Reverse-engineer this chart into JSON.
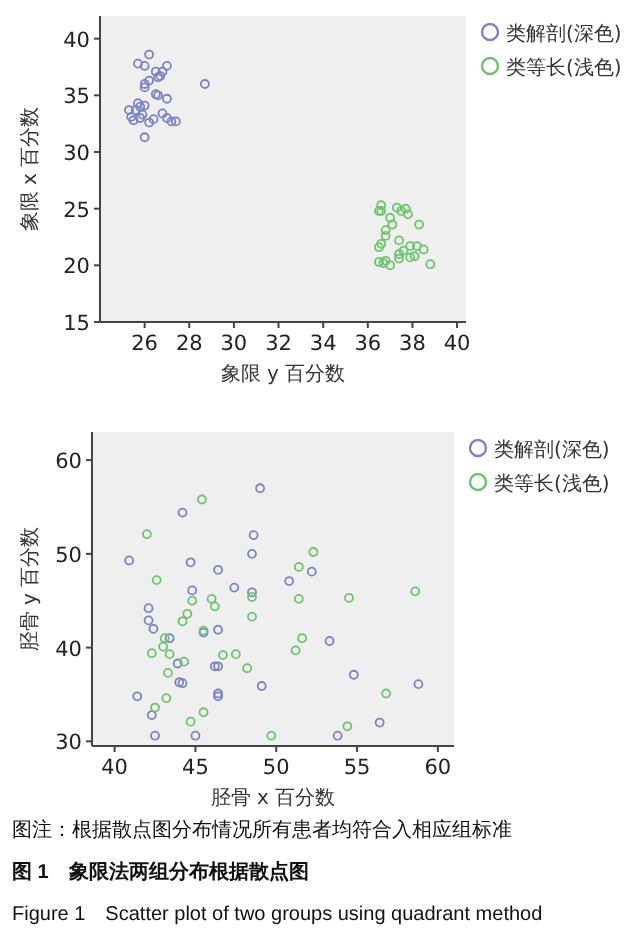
{
  "chart_data": [
    {
      "type": "scatter",
      "xlabel": "象限 y 百分数",
      "ylabel": "象限 x 百分数",
      "xlim": [
        24,
        40.4
      ],
      "ylim": [
        15,
        42
      ],
      "xticks": [
        26,
        28,
        30,
        32,
        34,
        36,
        38,
        40
      ],
      "yticks": [
        15,
        20,
        25,
        30,
        35,
        40
      ],
      "marker": "circle",
      "legend": "top right",
      "grid": false,
      "series": [
        {
          "name": "类解剖(深色)",
          "color": "#7b83c4",
          "x": [
            26.2,
            25.7,
            26,
            27,
            26.5,
            26.8,
            26.7,
            26.6,
            26.2,
            26,
            26,
            28.7,
            26.5,
            26.6,
            27,
            25.7,
            25.8,
            26,
            25.3,
            25.6,
            25.9,
            26.8,
            25.5,
            25.8,
            26.4,
            26.2,
            27,
            27.2,
            27.4,
            26,
            25.4
          ],
          "values": [
            38.6,
            37.8,
            37.6,
            37.6,
            37.1,
            37.1,
            36.7,
            36.6,
            36.3,
            36,
            35.7,
            36,
            35.1,
            35,
            34.7,
            34.3,
            34,
            34.1,
            33.7,
            33.7,
            33.3,
            33.4,
            32.8,
            33,
            32.9,
            32.6,
            33,
            32.7,
            32.7,
            31.3,
            33.1
          ]
        },
        {
          "name": "类等长(浅色)",
          "color": "#6cc46c",
          "x": [
            36.6,
            36.5,
            36.6,
            37.3,
            37.5,
            37.7,
            37.8,
            37,
            37.1,
            38.3,
            36.8,
            36.8,
            37.4,
            36.6,
            36.5,
            37.9,
            38.2,
            38.5,
            37.6,
            37.4,
            37.4,
            37.9,
            38.1,
            36.5,
            36.8,
            37,
            38.8,
            36.7
          ],
          "values": [
            25.3,
            24.8,
            24.8,
            25.1,
            24.8,
            25,
            24.5,
            24.2,
            23.6,
            23.6,
            23.1,
            22.6,
            22.2,
            21.9,
            21.6,
            21.7,
            21.7,
            21.4,
            21.3,
            21,
            20.6,
            20.7,
            20.8,
            20.3,
            20.4,
            20,
            20.1,
            20.2
          ]
        }
      ]
    },
    {
      "type": "scatter",
      "xlabel": "胫骨 x 百分数",
      "ylabel": "胫骨 y 百分数",
      "xlim": [
        38.6,
        61
      ],
      "ylim": [
        29.5,
        63
      ],
      "xticks": [
        40,
        45,
        50,
        55,
        60
      ],
      "yticks": [
        30,
        40,
        50,
        60
      ],
      "marker": "circle",
      "legend": "top right",
      "grid": false,
      "annotations": [
        "图注：根据散点图分布情况所有患者均符合入相应组标准",
        "图 1　象限法两组分布根据散点图",
        "Figure 1　Scatter plot of two groups using quadrant method"
      ],
      "series": [
        {
          "name": "类解剖(深色)",
          "color": "#7b83c4",
          "x": [
            49.0,
            44.2,
            40.9,
            44.7,
            48.6,
            48.5,
            46.4,
            52.2,
            50.8,
            47.4,
            44.8,
            48.5,
            42.1,
            42.1,
            42.4,
            46.4,
            45.5,
            43.4,
            53.3,
            43.9,
            46.2,
            46.4,
            44.0,
            44.2,
            54.8,
            49.1,
            58.8,
            46.4,
            46.4,
            41.4,
            42.3,
            56.4,
            42.5,
            45.0,
            53.8
          ],
          "values": [
            57.0,
            54.4,
            49.3,
            49.1,
            52.0,
            50.0,
            48.3,
            48.1,
            47.1,
            46.4,
            46.1,
            45.9,
            44.2,
            42.9,
            42.0,
            41.9,
            41.6,
            41.0,
            40.7,
            38.3,
            38.0,
            38.0,
            36.3,
            36.2,
            37.1,
            35.9,
            36.1,
            35.1,
            34.8,
            34.8,
            32.8,
            32.0,
            30.6,
            30.6,
            30.6
          ]
        },
        {
          "name": "类等长(浅色)",
          "color": "#6cc46c",
          "x": [
            45.4,
            42.0,
            52.3,
            42.6,
            51.4,
            46.0,
            44.8,
            46.2,
            48.5,
            51.4,
            54.5,
            58.6,
            44.5,
            44.2,
            48.5,
            45.5,
            43.1,
            51.6,
            43.0,
            51.2,
            42.3,
            43.4,
            46.7,
            47.5,
            44.3,
            48.2,
            43.3,
            43.2,
            56.8,
            42.5,
            45.5,
            44.7,
            54.4,
            49.7
          ],
          "values": [
            55.8,
            52.1,
            50.2,
            47.2,
            48.6,
            45.2,
            45.0,
            44.4,
            45.4,
            45.2,
            45.3,
            46.0,
            43.6,
            42.8,
            43.3,
            41.8,
            41.0,
            41.0,
            40.1,
            39.7,
            39.4,
            39.3,
            39.2,
            39.3,
            38.5,
            37.8,
            37.3,
            34.6,
            35.1,
            33.6,
            33.1,
            32.1,
            31.6,
            30.6
          ]
        }
      ]
    }
  ]
}
